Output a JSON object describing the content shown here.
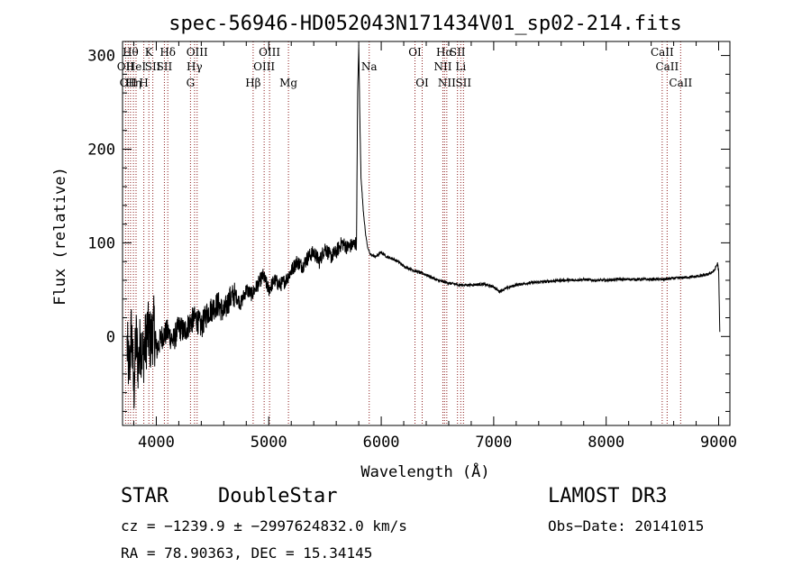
{
  "chart_data": {
    "type": "line",
    "title": "spec-56946-HD052043N171434V01_sp02-214.fits",
    "xlabel": "Wavelength (Å)",
    "ylabel": "Flux (relative)",
    "xlim": [
      3700,
      9100
    ],
    "ylim": [
      -95,
      315
    ],
    "xticks": [
      4000,
      5000,
      6000,
      7000,
      8000,
      9000
    ],
    "yticks": [
      0,
      100,
      200,
      300
    ],
    "x_minor_step": 200,
    "y_minor_step": 20,
    "grid": false,
    "line_color": "#000000",
    "marker_color": "#8b1a1a",
    "series": [
      {
        "name": "spectrum",
        "x": [
          3740,
          3760,
          3780,
          3800,
          3820,
          3840,
          3860,
          3880,
          3900,
          3920,
          3950,
          3980,
          4000,
          4050,
          4100,
          4150,
          4200,
          4250,
          4300,
          4350,
          4400,
          4450,
          4500,
          4550,
          4600,
          4650,
          4700,
          4750,
          4800,
          4850,
          4900,
          4950,
          5000,
          5050,
          5100,
          5150,
          5200,
          5250,
          5300,
          5350,
          5400,
          5450,
          5500,
          5550,
          5600,
          5650,
          5700,
          5750,
          5780,
          5790,
          5800,
          5810,
          5820,
          5840,
          5860,
          5880,
          5900,
          5950,
          6000,
          6050,
          6100,
          6150,
          6200,
          6300,
          6400,
          6500,
          6600,
          6700,
          6800,
          6900,
          7000,
          7050,
          7100,
          7150,
          7200,
          7300,
          7400,
          7500,
          7600,
          7700,
          7800,
          7900,
          8000,
          8100,
          8200,
          8300,
          8400,
          8500,
          8600,
          8700,
          8800,
          8900,
          8960,
          8990,
          9000,
          9010
        ],
        "y": [
          -10,
          -40,
          10,
          -60,
          0,
          -30,
          -5,
          -20,
          -10,
          5,
          -5,
          10,
          -15,
          0,
          5,
          -5,
          10,
          5,
          15,
          20,
          10,
          25,
          30,
          35,
          25,
          40,
          45,
          35,
          50,
          45,
          55,
          65,
          50,
          60,
          55,
          60,
          70,
          80,
          75,
          85,
          90,
          80,
          95,
          85,
          90,
          100,
          95,
          98,
          100,
          260,
          310,
          230,
          170,
          135,
          110,
          95,
          88,
          85,
          90,
          85,
          83,
          80,
          75,
          70,
          66,
          60,
          57,
          55,
          55,
          56,
          53,
          48,
          51,
          53,
          55,
          57,
          58,
          59,
          60,
          60,
          61,
          60,
          60,
          61,
          61,
          61,
          61,
          61,
          62,
          63,
          64,
          66,
          70,
          78,
          70,
          5
        ]
      }
    ],
    "lines": [
      {
        "wl": 3727,
        "name": "OII",
        "row": 1
      },
      {
        "wl": 3750,
        "name": "OII",
        "row": 2
      },
      {
        "wl": 3771,
        "name": "Hθ",
        "row": 0
      },
      {
        "wl": 3797,
        "name": "Hη",
        "row": 2
      },
      {
        "wl": 3820,
        "name": "HeI",
        "row": 1
      },
      {
        "wl": 3889,
        "name": "H",
        "row": 2
      },
      {
        "wl": 3934,
        "name": "K",
        "row": 0
      },
      {
        "wl": 3969,
        "name": "SII",
        "row": 1
      },
      {
        "wl": 4072,
        "name": "SII",
        "row": 1
      },
      {
        "wl": 4102,
        "name": "Hδ",
        "row": 0
      },
      {
        "wl": 4304,
        "name": "G",
        "row": 2
      },
      {
        "wl": 4340,
        "name": "Hγ",
        "row": 1
      },
      {
        "wl": 4363,
        "name": "OIII",
        "row": 0
      },
      {
        "wl": 4861,
        "name": "Hβ",
        "row": 2
      },
      {
        "wl": 4959,
        "name": "OIII",
        "row": 1
      },
      {
        "wl": 5007,
        "name": "OIII",
        "row": 0
      },
      {
        "wl": 5175,
        "name": "Mg",
        "row": 2
      },
      {
        "wl": 5893,
        "name": "Na",
        "row": 1
      },
      {
        "wl": 6300,
        "name": "OI",
        "row": 0
      },
      {
        "wl": 6364,
        "name": "OI",
        "row": 2
      },
      {
        "wl": 6548,
        "name": "NII",
        "row": 1
      },
      {
        "wl": 6563,
        "name": "Hα",
        "row": 0
      },
      {
        "wl": 6583,
        "name": "NII",
        "row": 2
      },
      {
        "wl": 6678,
        "name": "SII",
        "row": 0
      },
      {
        "wl": 6707,
        "name": "Li",
        "row": 1
      },
      {
        "wl": 6731,
        "name": "SII",
        "row": 2
      },
      {
        "wl": 8498,
        "name": "CaII",
        "row": 0
      },
      {
        "wl": 8542,
        "name": "CaII",
        "row": 1
      },
      {
        "wl": 8662,
        "name": "CaII",
        "row": 2
      }
    ]
  },
  "info": {
    "class_label": "STAR",
    "subclass": "DoubleStar",
    "survey": "LAMOST DR3",
    "cz": "cz = −1239.9 ± −2997624832.0 km/s",
    "obs_date": "Obs−Date: 20141015",
    "coords": "RA =  78.90363, DEC =  15.34145"
  }
}
